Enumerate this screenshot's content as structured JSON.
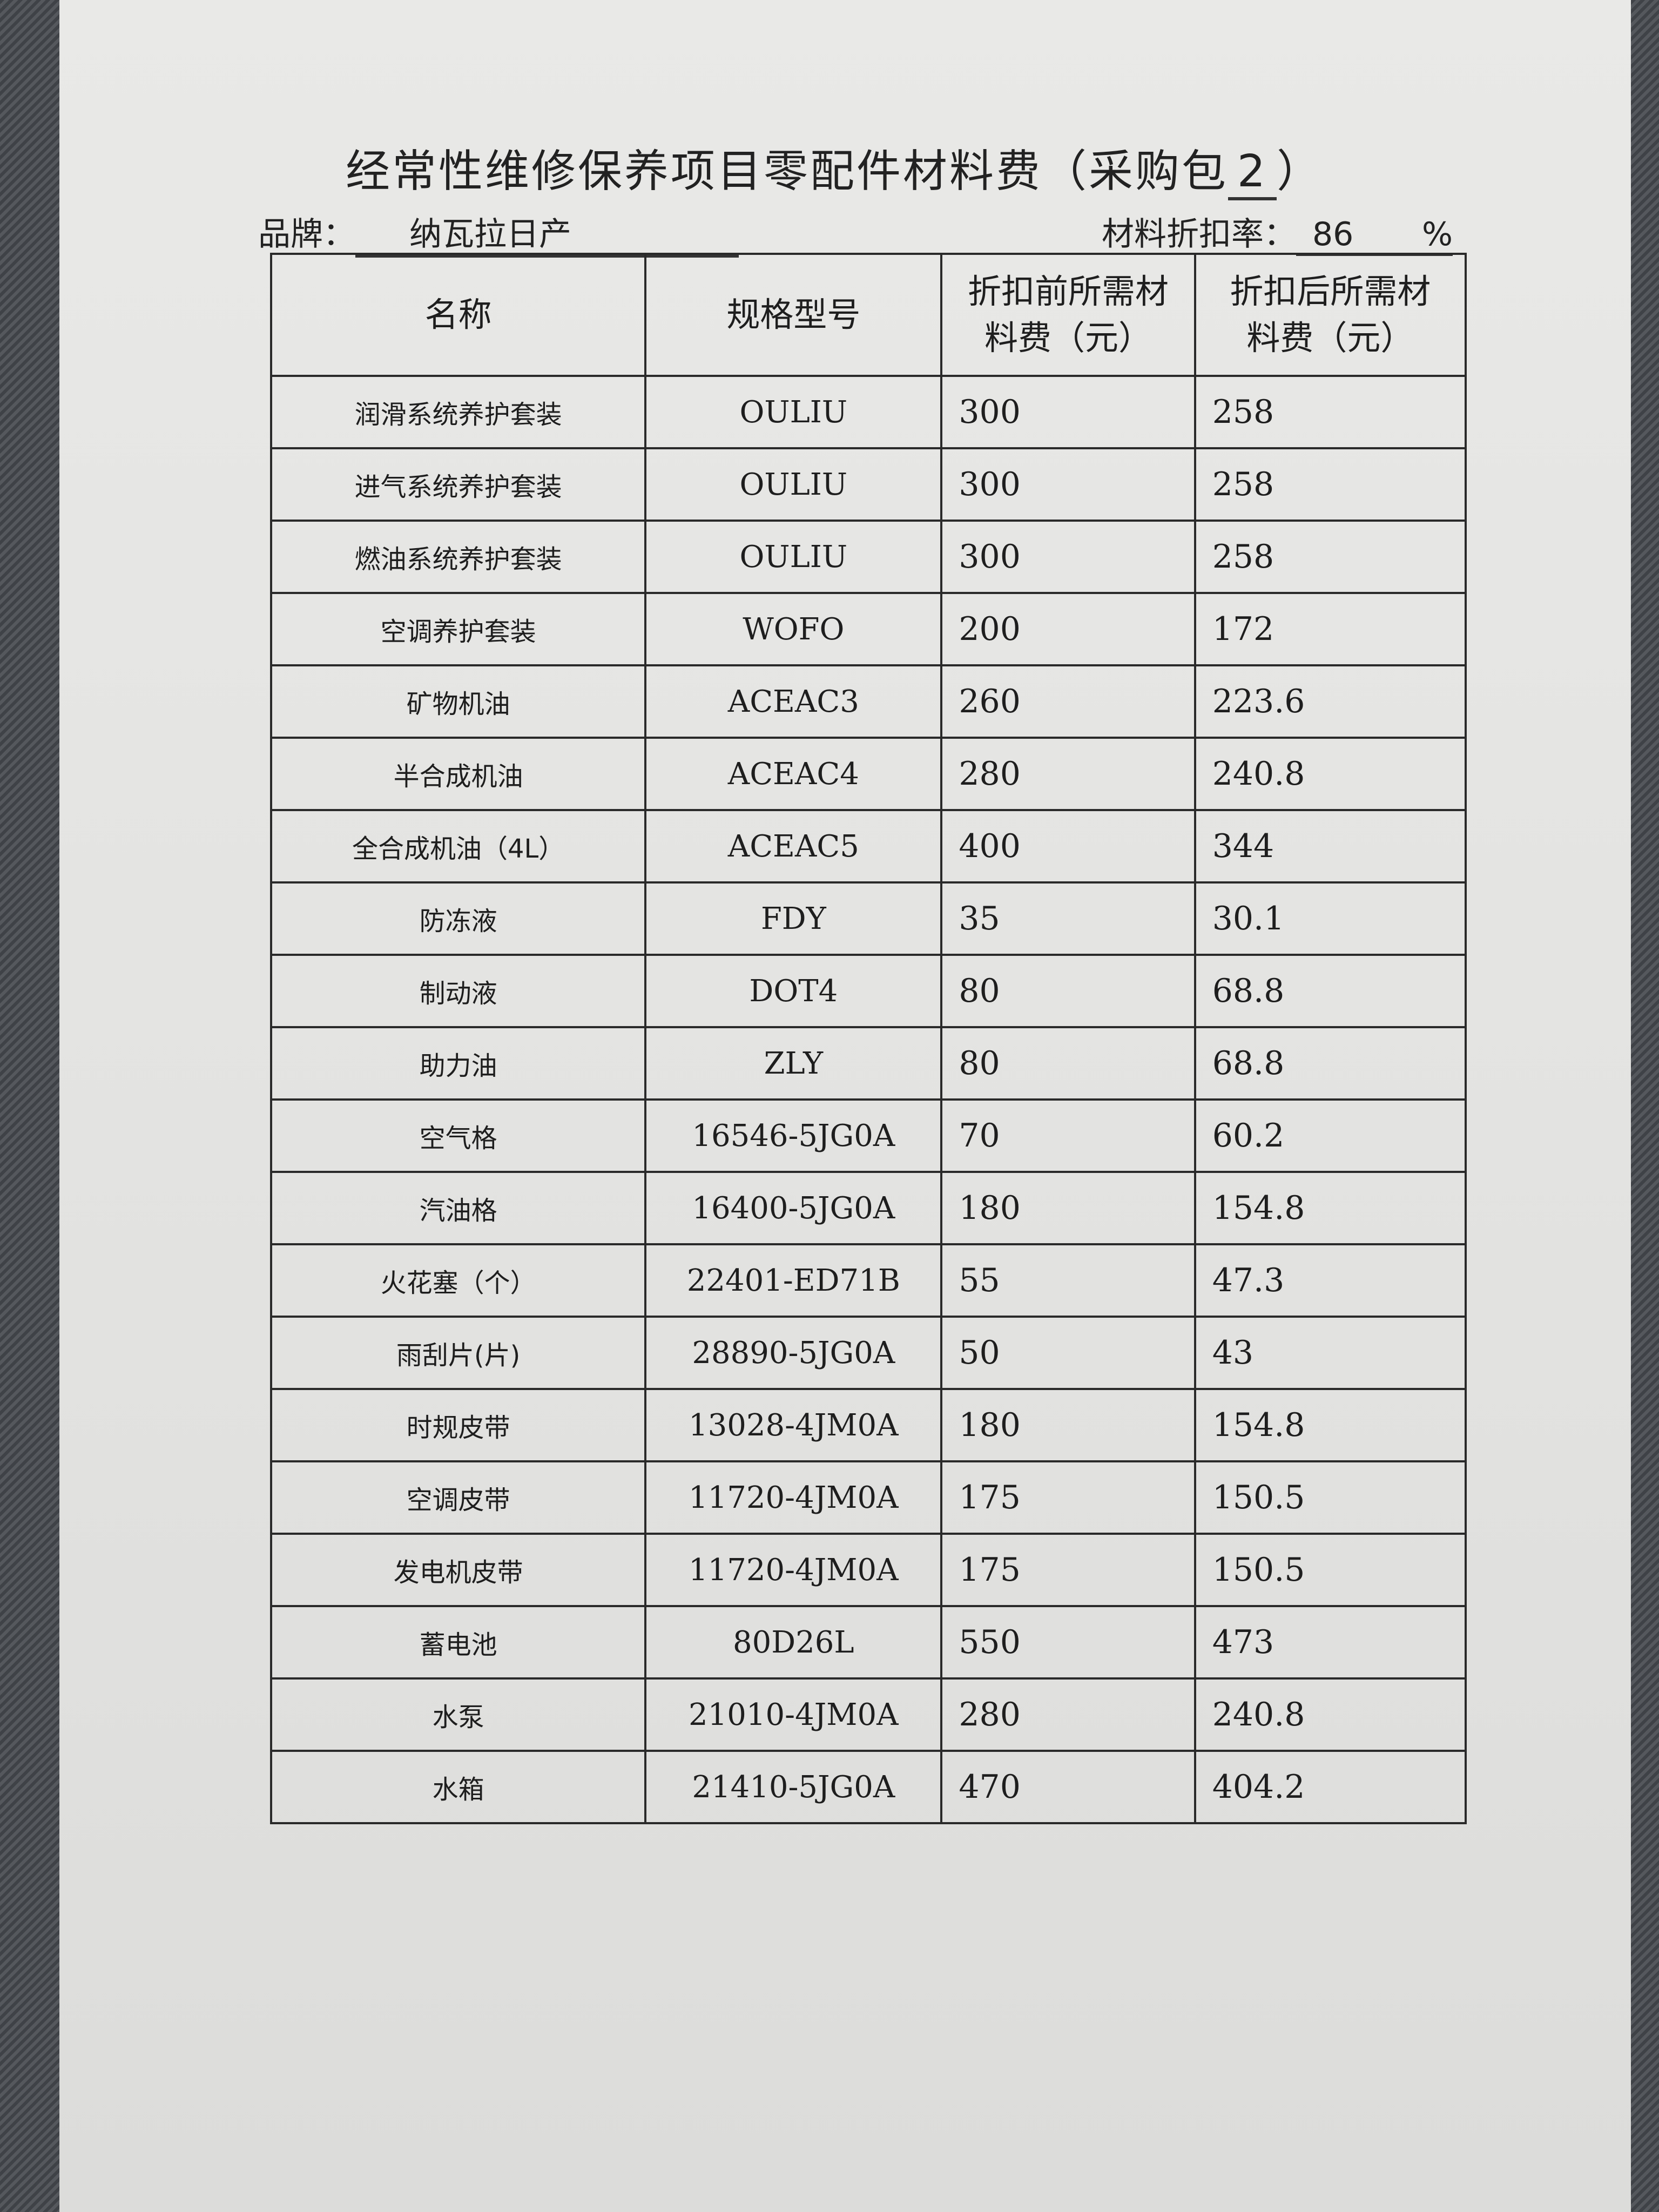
{
  "title": {
    "text": "经常性维修保养项目零配件材料费（采购包",
    "package_no": "2",
    "close": "）"
  },
  "brand": {
    "label": "品牌：",
    "value": "纳瓦拉日产"
  },
  "discount": {
    "label": "材料折扣率：",
    "value": "86",
    "unit": "%"
  },
  "table": {
    "headers": [
      "名称",
      "规格型号",
      "折扣前所需材料费（元）",
      "折扣后所需材料费（元）"
    ],
    "rows": [
      [
        "润滑系统养护套装",
        "OULIU",
        "300",
        "258"
      ],
      [
        "进气系统养护套装",
        "OULIU",
        "300",
        "258"
      ],
      [
        "燃油系统养护套装",
        "OULIU",
        "300",
        "258"
      ],
      [
        "空调养护套装",
        "WOFO",
        "200",
        "172"
      ],
      [
        "矿物机油",
        "ACEAC3",
        "260",
        "223.6"
      ],
      [
        "半合成机油",
        "ACEAC4",
        "280",
        "240.8"
      ],
      [
        "全合成机油（4L）",
        "ACEAC5",
        "400",
        "344"
      ],
      [
        "防冻液",
        "FDY",
        "35",
        "30.1"
      ],
      [
        "制动液",
        "DOT4",
        "80",
        "68.8"
      ],
      [
        "助力油",
        "ZLY",
        "80",
        "68.8"
      ],
      [
        "空气格",
        "16546-5JG0A",
        "70",
        "60.2"
      ],
      [
        "汽油格",
        "16400-5JG0A",
        "180",
        "154.8"
      ],
      [
        "火花塞（个）",
        "22401-ED71B",
        "55",
        "47.3"
      ],
      [
        "雨刮片(片)",
        "28890-5JG0A",
        "50",
        "43"
      ],
      [
        "时规皮带",
        "13028-4JM0A",
        "180",
        "154.8"
      ],
      [
        "空调皮带",
        "11720-4JM0A",
        "175",
        "150.5"
      ],
      [
        "发电机皮带",
        "11720-4JM0A",
        "175",
        "150.5"
      ],
      [
        "蓄电池",
        "80D26L",
        "550",
        "473"
      ],
      [
        "水泵",
        "21010-4JM0A",
        "280",
        "240.8"
      ],
      [
        "水箱",
        "21410-5JG0A",
        "470",
        "404.2"
      ]
    ]
  }
}
